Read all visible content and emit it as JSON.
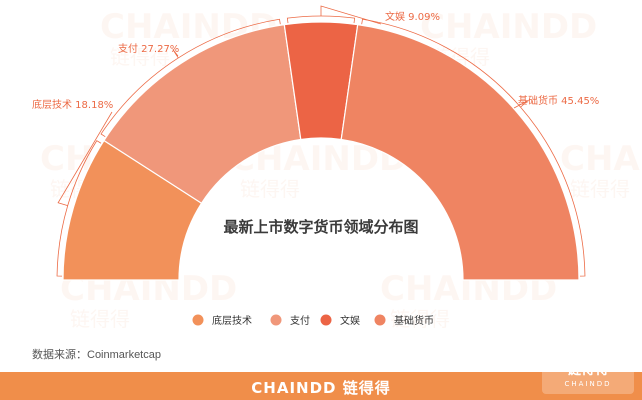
{
  "watermark": {
    "text": "CHAINDD",
    "text_cn": "链得得"
  },
  "chart_data": {
    "type": "pie",
    "title": "最新上市数字货币领域分布图",
    "categories": [
      "底层技术",
      "支付",
      "文娱",
      "基础货币"
    ],
    "values": [
      18.18,
      27.27,
      9.09,
      45.45
    ],
    "slice_labels": [
      "底层技术 18.18%",
      "支付 27.27%",
      "文娱 9.09%",
      "基础货币 45.45%"
    ],
    "colors": [
      "#f2915a",
      "#f0977a",
      "#ec6445",
      "#ef8462"
    ],
    "legend_position": "bottom",
    "shape": "half-donut"
  },
  "source_text": "数据来源：Coinmarketcap",
  "footer": {
    "brand": "CHAINDD 链得得",
    "logo_top": "链得得",
    "logo_bottom": "CHAINDD"
  }
}
